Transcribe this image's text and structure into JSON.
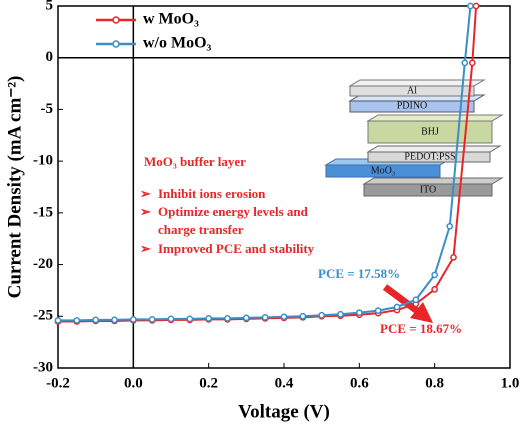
{
  "chart_data": {
    "type": "line",
    "x_label": "Voltage (V)",
    "y_label": "Current Density (mA cm⁻²)",
    "xlim": [
      -0.2,
      1.0
    ],
    "xticks": [
      -0.2,
      {
        "value": 0,
        "label": "0.0"
      },
      0.2,
      0.4,
      0.6,
      0.8,
      {
        "value": 1,
        "label": "1.0"
      }
    ],
    "ylim": [
      -30,
      5
    ],
    "yticks": [
      -30,
      -25,
      -20,
      -15,
      -10,
      -5,
      0,
      5
    ],
    "legend": "top-left",
    "series": [
      {
        "name": "w MoO₃",
        "color": "#e8262a",
        "x": [
          -0.2,
          -0.15,
          -0.1,
          -0.05,
          0,
          0.05,
          0.1,
          0.15,
          0.2,
          0.25,
          0.3,
          0.35,
          0.4,
          0.45,
          0.5,
          0.55,
          0.6,
          0.65,
          0.7,
          0.75,
          0.8,
          0.85,
          0.9,
          0.91
        ],
        "values": [
          -25.5,
          -25.5,
          -25.45,
          -25.45,
          -25.4,
          -25.4,
          -25.35,
          -25.35,
          -25.3,
          -25.3,
          -25.25,
          -25.2,
          -25.15,
          -25.1,
          -25.0,
          -24.95,
          -24.85,
          -24.7,
          -24.4,
          -23.8,
          -22.4,
          -19.3,
          -0.5,
          5
        ]
      },
      {
        "name": "w/o MoO₃",
        "color": "#3a8fc8",
        "x": [
          -0.2,
          -0.15,
          -0.1,
          -0.05,
          0,
          0.05,
          0.1,
          0.15,
          0.2,
          0.25,
          0.3,
          0.35,
          0.4,
          0.45,
          0.5,
          0.55,
          0.6,
          0.65,
          0.7,
          0.75,
          0.8,
          0.84,
          0.88,
          0.895
        ],
        "values": [
          -25.4,
          -25.4,
          -25.35,
          -25.35,
          -25.3,
          -25.3,
          -25.25,
          -25.25,
          -25.2,
          -25.2,
          -25.15,
          -25.1,
          -25.05,
          -25.0,
          -24.9,
          -24.8,
          -24.65,
          -24.45,
          -24.1,
          -23.4,
          -21.0,
          -16.3,
          -0.5,
          5
        ]
      }
    ],
    "annotations": {
      "box_title": "MoO₃ buffer layer",
      "bullets": [
        "Inhibit ions erosion",
        "Optimize energy levels and",
        "charge transfer",
        "Improved PCE and stability"
      ],
      "pce_without": "PCE = 17.58%",
      "pce_with": "PCE = 18.67%",
      "layers": [
        "Al",
        "PDINO",
        "BHJ",
        "PEDOT:PSS",
        "MoO₃",
        "ITO"
      ]
    }
  }
}
